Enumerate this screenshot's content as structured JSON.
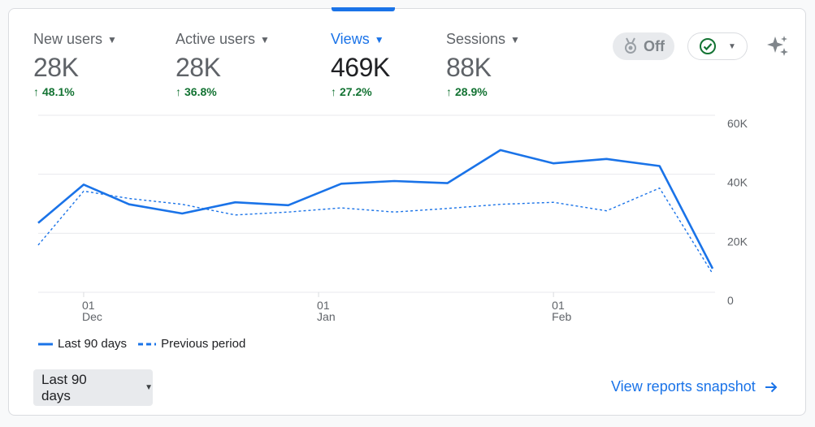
{
  "metrics": [
    {
      "label": "New users",
      "value": "28K",
      "delta": "48.1%"
    },
    {
      "label": "Active users",
      "value": "28K",
      "delta": "36.8%"
    },
    {
      "label": "Views",
      "value": "469K",
      "delta": "27.2%"
    },
    {
      "label": "Sessions",
      "value": "88K",
      "delta": "28.9%"
    }
  ],
  "toggle": {
    "label": "Off"
  },
  "colors": {
    "accent": "#1a73e8",
    "positive": "#137333",
    "muted": "#5f6368"
  },
  "chart_data": {
    "type": "line",
    "ylim": [
      0,
      60000
    ],
    "y_ticks": [
      {
        "value": 60000,
        "label": "60K"
      },
      {
        "value": 40000,
        "label": "40K"
      },
      {
        "value": 20000,
        "label": "20K"
      },
      {
        "value": 0,
        "label": "0"
      }
    ],
    "x_ticks": [
      {
        "day": 1,
        "label": "01",
        "sub": "Dec"
      },
      {
        "day": 32,
        "label": "01",
        "sub": "Jan"
      },
      {
        "day": 63,
        "label": "01",
        "sub": "Feb"
      }
    ],
    "x_range": [
      -5,
      84
    ],
    "series": [
      {
        "name": "Last 90 days",
        "style": "solid",
        "x": [
          -5,
          1,
          7,
          14,
          21,
          28,
          35,
          42,
          49,
          56,
          63,
          70,
          77,
          84
        ],
        "values": [
          23500,
          36500,
          29800,
          26700,
          30500,
          29500,
          36800,
          37700,
          37000,
          48200,
          43700,
          45200,
          42800,
          8000
        ]
      },
      {
        "name": "Previous period",
        "style": "dashed",
        "x": [
          -5,
          1,
          7,
          14,
          21,
          28,
          35,
          42,
          49,
          56,
          63,
          70,
          77,
          84
        ],
        "values": [
          16000,
          34300,
          31800,
          29800,
          26200,
          27200,
          28600,
          27200,
          28400,
          29800,
          30500,
          27600,
          35300,
          6300
        ]
      }
    ],
    "legend": [
      {
        "label": "Last 90 days",
        "style": "solid"
      },
      {
        "label": "Previous period",
        "style": "dashed"
      }
    ]
  },
  "date_range": {
    "label": "Last 90 days"
  },
  "link": {
    "label": "View reports snapshot"
  }
}
